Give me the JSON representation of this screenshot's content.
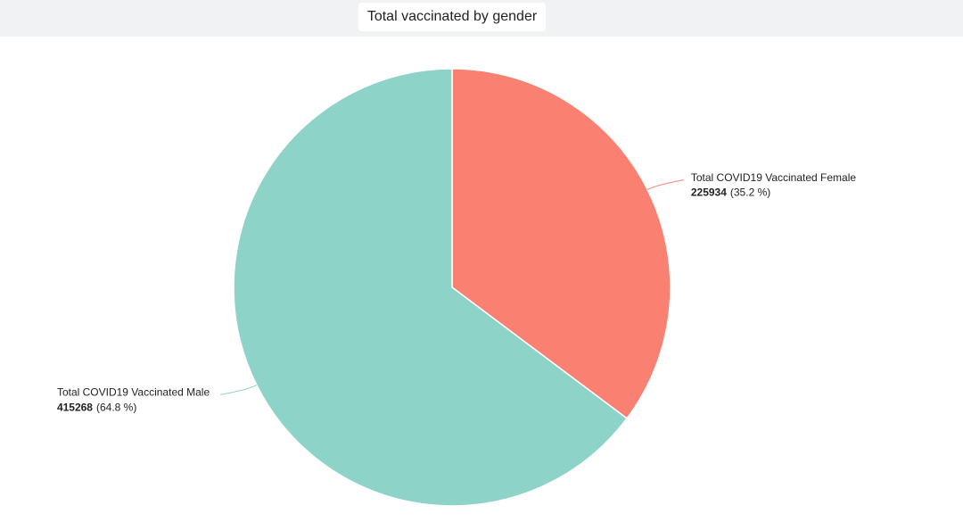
{
  "chart_data": {
    "type": "pie",
    "title": "Total vaccinated by gender",
    "categories": [
      "Total COVID19 Vaccinated Female",
      "Total COVID19 Vaccinated Male"
    ],
    "values": [
      225934,
      415268
    ],
    "percent_labels": [
      "(35.2 %)",
      "(64.8 %)"
    ],
    "colors": [
      "#fa8072",
      "#8dd3c7"
    ]
  }
}
